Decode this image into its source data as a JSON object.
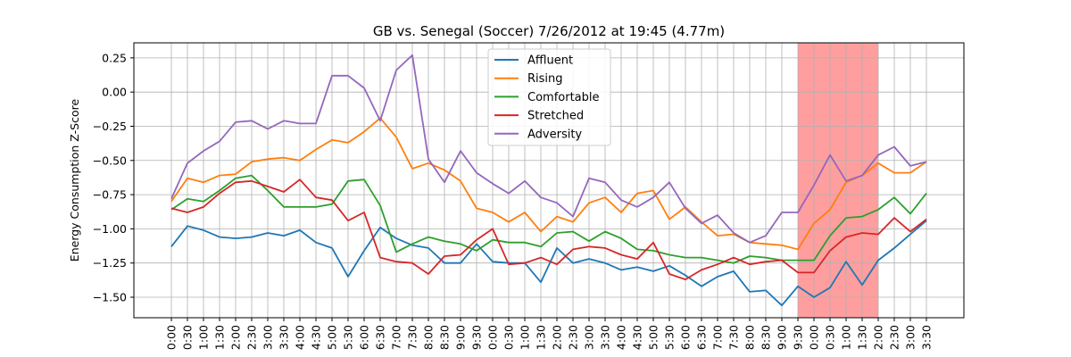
{
  "chart_data": {
    "type": "line",
    "title": "GB vs. Senegal (Soccer) 7/26/2012 at 19:45 (4.77m)",
    "xlabel": "",
    "ylabel": "Energy Consumption Z-Score",
    "ylim": [
      -1.65,
      0.36
    ],
    "yticks": [
      0.25,
      0.0,
      -0.25,
      -0.5,
      -0.75,
      -1.0,
      -1.25,
      -1.5
    ],
    "ytick_labels": [
      "0.25",
      "0.00",
      "−0.25",
      "−0.50",
      "−0.75",
      "−1.00",
      "−1.25",
      "−1.50"
    ],
    "x": [
      "0:00",
      "0:30",
      "1:00",
      "1:30",
      "2:00",
      "2:30",
      "3:00",
      "3:30",
      "4:00",
      "4:30",
      "5:00",
      "5:30",
      "6:00",
      "6:30",
      "7:00",
      "7:30",
      "8:00",
      "8:30",
      "9:00",
      "9:30",
      "0:00",
      "0:30",
      "1:00",
      "1:30",
      "2:00",
      "2:30",
      "3:00",
      "3:30",
      "4:00",
      "4:30",
      "5:00",
      "5:30",
      "6:00",
      "6:30",
      "7:00",
      "7:30",
      "8:00",
      "8:30",
      "9:00",
      "9:30",
      "0:00",
      "0:30",
      "1:00",
      "1:30",
      "2:00",
      "2:30",
      "3:00",
      "3:30"
    ],
    "grid": true,
    "legend_position": "upper center",
    "highlight_span": {
      "from_index": 39,
      "to_index": 44,
      "color": "#ff9999"
    },
    "series": [
      {
        "name": "Affluent",
        "color": "#1f77b4",
        "values": [
          -1.13,
          -0.98,
          -1.01,
          -1.06,
          -1.07,
          -1.06,
          -1.03,
          -1.05,
          -1.01,
          -1.1,
          -1.14,
          -1.35,
          -1.16,
          -0.99,
          -1.07,
          -1.12,
          -1.14,
          -1.25,
          -1.25,
          -1.11,
          -1.24,
          -1.25,
          -1.25,
          -1.39,
          -1.14,
          -1.25,
          -1.22,
          -1.25,
          -1.3,
          -1.28,
          -1.31,
          -1.27,
          -1.34,
          -1.42,
          -1.35,
          -1.31,
          -1.46,
          -1.45,
          -1.56,
          -1.42,
          -1.5,
          -1.43,
          -1.24,
          -1.41,
          -1.23,
          -1.14,
          -1.04,
          -0.94
        ]
      },
      {
        "name": "Rising",
        "color": "#ff7f0e",
        "values": [
          -0.8,
          -0.63,
          -0.66,
          -0.61,
          -0.6,
          -0.51,
          -0.49,
          -0.48,
          -0.5,
          -0.42,
          -0.35,
          -0.37,
          -0.29,
          -0.19,
          -0.33,
          -0.56,
          -0.52,
          -0.57,
          -0.65,
          -0.85,
          -0.88,
          -0.95,
          -0.88,
          -1.02,
          -0.91,
          -0.95,
          -0.81,
          -0.77,
          -0.88,
          -0.74,
          -0.72,
          -0.93,
          -0.84,
          -0.95,
          -1.05,
          -1.04,
          -1.1,
          -1.11,
          -1.12,
          -1.15,
          -0.96,
          -0.86,
          -0.66,
          -0.61,
          -0.52,
          -0.59,
          -0.59,
          -0.51
        ]
      },
      {
        "name": "Comfortable",
        "color": "#2ca02c",
        "values": [
          -0.86,
          -0.78,
          -0.8,
          -0.72,
          -0.63,
          -0.61,
          -0.72,
          -0.84,
          -0.84,
          -0.84,
          -0.82,
          -0.65,
          -0.64,
          -0.83,
          -1.17,
          -1.11,
          -1.06,
          -1.09,
          -1.11,
          -1.16,
          -1.08,
          -1.1,
          -1.1,
          -1.13,
          -1.03,
          -1.02,
          -1.09,
          -1.02,
          -1.07,
          -1.15,
          -1.16,
          -1.19,
          -1.21,
          -1.21,
          -1.23,
          -1.25,
          -1.2,
          -1.21,
          -1.23,
          -1.23,
          -1.23,
          -1.05,
          -0.92,
          -0.91,
          -0.86,
          -0.77,
          -0.89,
          -0.74
        ]
      },
      {
        "name": "Stretched",
        "color": "#d62728",
        "values": [
          -0.85,
          -0.88,
          -0.84,
          -0.74,
          -0.66,
          -0.65,
          -0.69,
          -0.73,
          -0.64,
          -0.77,
          -0.79,
          -0.94,
          -0.88,
          -1.21,
          -1.24,
          -1.25,
          -1.33,
          -1.2,
          -1.19,
          -1.08,
          -1.0,
          -1.26,
          -1.25,
          -1.21,
          -1.26,
          -1.15,
          -1.13,
          -1.14,
          -1.19,
          -1.22,
          -1.1,
          -1.33,
          -1.37,
          -1.3,
          -1.26,
          -1.21,
          -1.26,
          -1.24,
          -1.23,
          -1.32,
          -1.32,
          -1.16,
          -1.06,
          -1.03,
          -1.04,
          -0.92,
          -1.02,
          -0.93
        ]
      },
      {
        "name": "Adversity",
        "color": "#9467bd",
        "values": [
          -0.78,
          -0.52,
          -0.43,
          -0.36,
          -0.22,
          -0.21,
          -0.27,
          -0.21,
          -0.23,
          -0.23,
          0.12,
          0.12,
          0.03,
          -0.21,
          0.16,
          0.27,
          -0.49,
          -0.66,
          -0.43,
          -0.59,
          -0.67,
          -0.74,
          -0.65,
          -0.77,
          -0.81,
          -0.91,
          -0.63,
          -0.66,
          -0.79,
          -0.84,
          -0.77,
          -0.66,
          -0.85,
          -0.96,
          -0.9,
          -1.03,
          -1.1,
          -1.05,
          -0.88,
          -0.88,
          -0.68,
          -0.46,
          -0.65,
          -0.61,
          -0.46,
          -0.4,
          -0.54,
          -0.51
        ]
      }
    ]
  }
}
